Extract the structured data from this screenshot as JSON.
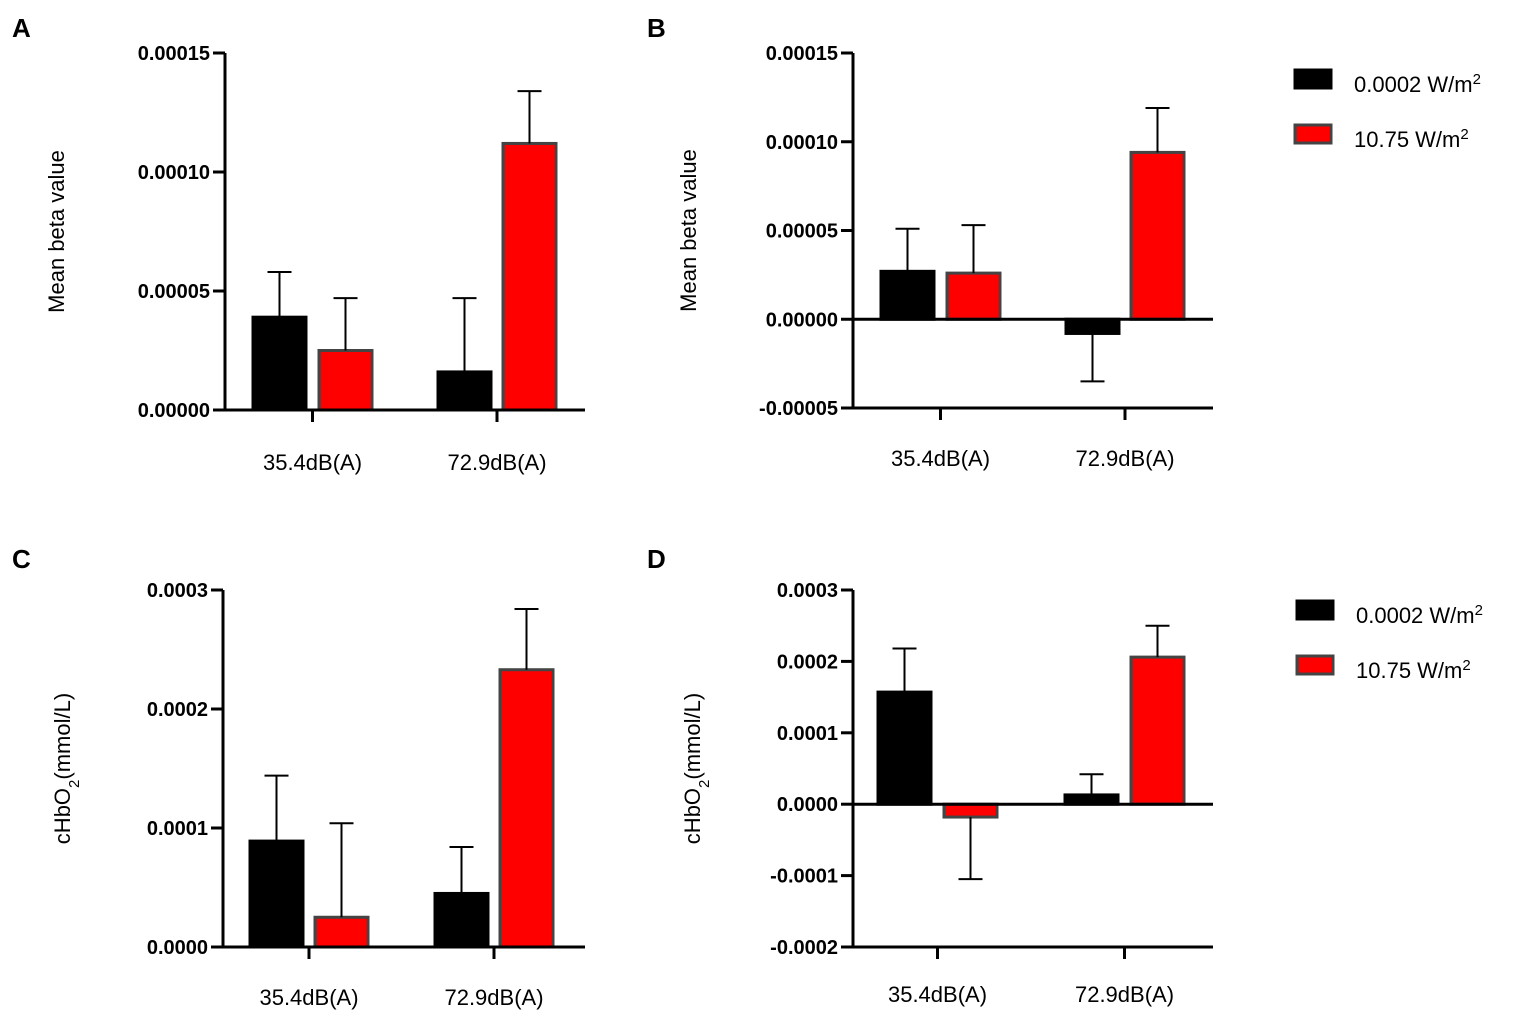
{
  "colors": {
    "black_series": "#000000",
    "red_series": "#ff0000",
    "red_border": "#444444",
    "axis": "#000000"
  },
  "legends": [
    {
      "entries": [
        {
          "label": "0.0002 W/m",
          "sup": "2",
          "color": "#000000"
        },
        {
          "label": "10.75 W/m",
          "sup": "2",
          "color": "#ff0000"
        }
      ]
    },
    {
      "entries": [
        {
          "label": "0.0002 W/m",
          "sup": "2",
          "color": "#000000"
        },
        {
          "label": "10.75 W/m",
          "sup": "2",
          "color": "#ff0000"
        }
      ]
    }
  ],
  "chart_data": [
    {
      "panel": "A",
      "type": "bar",
      "ylabel": {
        "text": "Mean beta value",
        "sub": ""
      },
      "categories": [
        "35.4dB(A)",
        "72.9dB(A)"
      ],
      "ylim": [
        0,
        0.00015
      ],
      "yticks": [
        {
          "value": 0,
          "label": "0.00000"
        },
        {
          "value": 5e-05,
          "label": "0.00005"
        },
        {
          "value": 0.0001,
          "label": "0.00010"
        },
        {
          "value": 0.00015,
          "label": "0.00015"
        }
      ],
      "series": [
        {
          "name": "0.0002 W/m2",
          "values": [
            3.9e-05,
            1.6e-05
          ],
          "errors": [
            1.9e-05,
            3.1e-05
          ]
        },
        {
          "name": "10.75 W/m2",
          "values": [
            2.5e-05,
            0.000112
          ],
          "errors": [
            2.2e-05,
            2.2e-05
          ]
        }
      ]
    },
    {
      "panel": "B",
      "type": "bar",
      "ylabel": {
        "text": "Mean beta value",
        "sub": ""
      },
      "categories": [
        "35.4dB(A)",
        "72.9dB(A)"
      ],
      "ylim": [
        -5e-05,
        0.00015
      ],
      "yticks": [
        {
          "value": -5e-05,
          "label": "-0.00005"
        },
        {
          "value": 0,
          "label": "0.00000"
        },
        {
          "value": 5e-05,
          "label": "0.00005"
        },
        {
          "value": 0.0001,
          "label": "0.00010"
        },
        {
          "value": 0.00015,
          "label": "0.00015"
        }
      ],
      "series": [
        {
          "name": "0.0002 W/m2",
          "values": [
            2.7e-05,
            -8e-06
          ],
          "errors": [
            2.4e-05,
            2.7e-05
          ]
        },
        {
          "name": "10.75 W/m2",
          "values": [
            2.6e-05,
            9.4e-05
          ],
          "errors": [
            2.7e-05,
            2.5e-05
          ]
        }
      ]
    },
    {
      "panel": "C",
      "type": "bar",
      "ylabel": {
        "text": "cHbO",
        "sub": "2",
        "rest": "(mmol/L)"
      },
      "categories": [
        "35.4dB(A)",
        "72.9dB(A)"
      ],
      "ylim": [
        0,
        0.0003
      ],
      "yticks": [
        {
          "value": 0,
          "label": "0.0000"
        },
        {
          "value": 0.0001,
          "label": "0.0001"
        },
        {
          "value": 0.0002,
          "label": "0.0002"
        },
        {
          "value": 0.0003,
          "label": "0.0003"
        }
      ],
      "series": [
        {
          "name": "0.0002 W/m2",
          "values": [
            8.9e-05,
            4.5e-05
          ],
          "errors": [
            5.5e-05,
            3.9e-05
          ]
        },
        {
          "name": "10.75 W/m2",
          "values": [
            2.5e-05,
            0.000233
          ],
          "errors": [
            7.9e-05,
            5.1e-05
          ]
        }
      ]
    },
    {
      "panel": "D",
      "type": "bar",
      "ylabel": {
        "text": "cHbO",
        "sub": "2",
        "rest": "(mmol/L)"
      },
      "categories": [
        "35.4dB(A)",
        "72.9dB(A)"
      ],
      "ylim": [
        -0.0002,
        0.0003
      ],
      "yticks": [
        {
          "value": -0.0002,
          "label": "-0.0002"
        },
        {
          "value": -0.0001,
          "label": "-0.0001"
        },
        {
          "value": 0,
          "label": "0.0000"
        },
        {
          "value": 0.0001,
          "label": "0.0001"
        },
        {
          "value": 0.0002,
          "label": "0.0002"
        },
        {
          "value": 0.0003,
          "label": "0.0003"
        }
      ],
      "series": [
        {
          "name": "0.0002 W/m2",
          "values": [
            0.000157,
            1.3e-05
          ],
          "errors": [
            6.1e-05,
            2.9e-05
          ]
        },
        {
          "name": "10.75 W/m2",
          "values": [
            -1.8e-05,
            0.000206
          ],
          "errors": [
            8.7e-05,
            4.4e-05
          ]
        }
      ]
    }
  ]
}
